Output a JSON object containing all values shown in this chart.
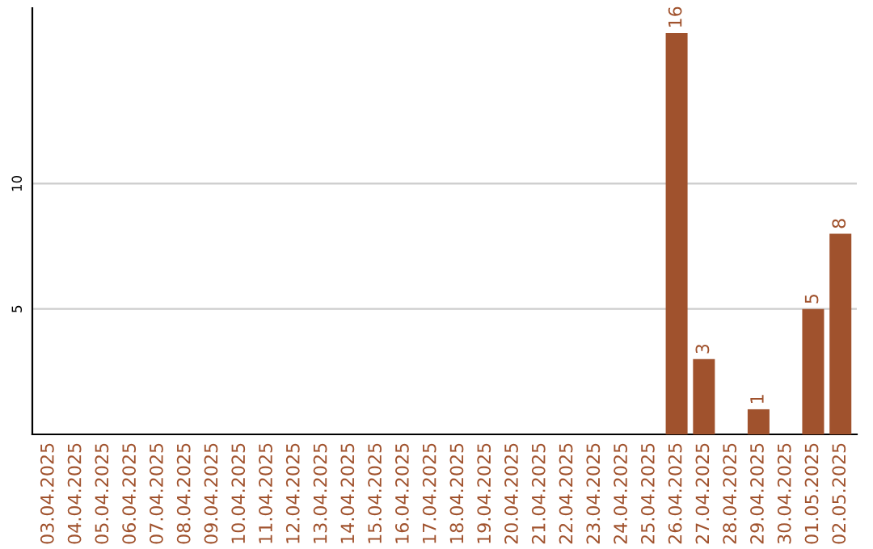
{
  "chart_data": {
    "type": "bar",
    "categories": [
      "03.04.2025",
      "04.04.2025",
      "05.04.2025",
      "06.04.2025",
      "07.04.2025",
      "08.04.2025",
      "09.04.2025",
      "10.04.2025",
      "11.04.2025",
      "12.04.2025",
      "13.04.2025",
      "14.04.2025",
      "15.04.2025",
      "16.04.2025",
      "17.04.2025",
      "18.04.2025",
      "19.04.2025",
      "20.04.2025",
      "21.04.2025",
      "22.04.2025",
      "23.04.2025",
      "24.04.2025",
      "25.04.2025",
      "26.04.2025",
      "27.04.2025",
      "28.04.2025",
      "29.04.2025",
      "30.04.2025",
      "01.05.2025",
      "02.05.2025"
    ],
    "values": [
      0,
      0,
      0,
      0,
      0,
      0,
      0,
      0,
      0,
      0,
      0,
      0,
      0,
      0,
      0,
      0,
      0,
      0,
      0,
      0,
      0,
      0,
      0,
      16,
      3,
      0,
      1,
      0,
      5,
      8
    ],
    "value_labels": [
      null,
      null,
      null,
      null,
      null,
      null,
      null,
      null,
      null,
      null,
      null,
      null,
      null,
      null,
      null,
      null,
      null,
      null,
      null,
      null,
      null,
      null,
      null,
      "16",
      "3",
      null,
      "1",
      null,
      "5",
      "8"
    ],
    "color": "#a0522d",
    "ylim": [
      0,
      17
    ],
    "yticks": [
      5,
      10
    ],
    "grid": "y"
  }
}
